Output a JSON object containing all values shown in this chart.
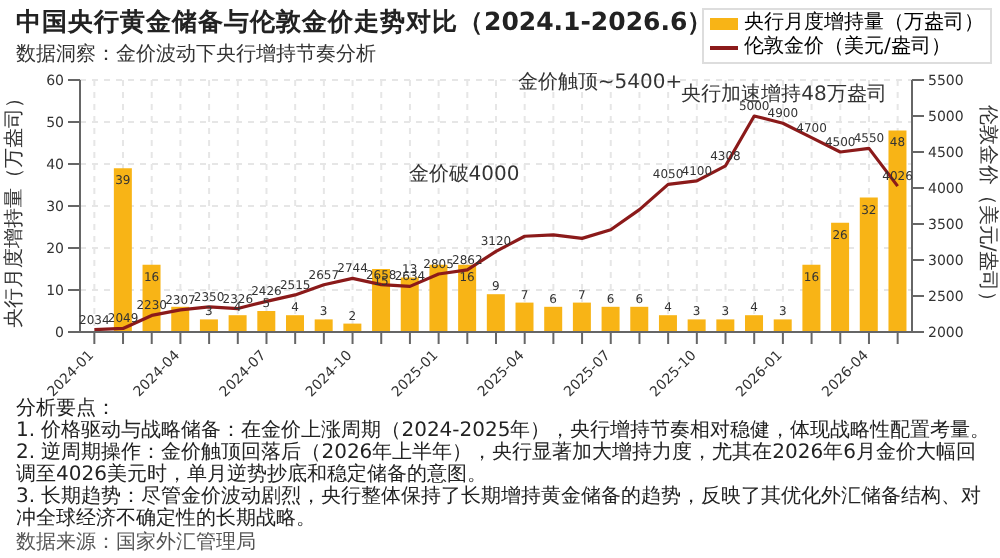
{
  "chart_data": {
    "type": "bar",
    "title": "中国央行黄金储备与伦敦金价走势对比（2024.1-2026.6）",
    "subtitle": "数据洞察：金价波动下央行增持节奏分析",
    "ylabel": "央行月度增持量（万盎司）",
    "y2label": "伦敦金价（美元/盎司）",
    "categories": [
      "2024-01",
      null,
      null,
      "2024-04",
      null,
      null,
      "2024-07",
      null,
      null,
      "2024-10",
      null,
      null,
      "2025-01",
      null,
      null,
      "2025-04",
      null,
      null,
      "2025-07",
      null,
      null,
      "2025-10",
      null,
      null,
      "2026-01",
      null,
      null,
      "2026-04",
      null
    ],
    "series": [
      {
        "name": "央行月度增持量（万盎司）",
        "color": "#f8b416",
        "values": [
          null,
          39,
          16,
          6,
          3,
          4,
          5,
          4,
          3,
          2,
          15,
          13,
          16,
          16,
          9,
          7,
          6,
          7,
          6,
          6,
          4,
          3,
          3,
          4,
          3,
          16,
          26,
          32,
          48
        ],
        "value_labels": [
          null,
          "39",
          "16",
          null,
          "3",
          "4",
          "5",
          "4",
          "3",
          "2",
          "15",
          "13",
          null,
          "16",
          "9",
          "7",
          "6",
          "7",
          "6",
          "6",
          "4",
          "3",
          "3",
          "4",
          "3",
          "16",
          "26",
          "32",
          "48"
        ]
      },
      {
        "name": "伦敦金价（美元/盎司）",
        "type": "line",
        "axis": "y2",
        "color": "#8b1a1a",
        "values": [
          2034,
          2049,
          2230,
          2307,
          2350,
          2326,
          2426,
          2515,
          2657,
          2744,
          2658,
          2634,
          2805,
          2862,
          3120,
          3330,
          3350,
          3300,
          3420,
          3700,
          4050,
          4100,
          4308,
          5000,
          4900,
          4700,
          4500,
          4550,
          4026
        ],
        "value_labels": [
          "2034",
          "2049",
          "2230",
          "2307",
          "2350",
          "2326",
          "2426",
          "2515",
          "2657",
          "2744",
          "2658",
          "2634",
          "2805",
          "2862",
          "3120",
          null,
          null,
          null,
          null,
          null,
          "4050",
          "4100",
          "4308",
          "5000",
          "4900",
          "4700",
          "4500",
          "4550",
          "4026"
        ]
      }
    ],
    "ylim": [
      0,
      60
    ],
    "yticks": [
      0,
      10,
      20,
      30,
      40,
      50,
      60
    ],
    "y2lim": [
      2000,
      5500
    ],
    "y2ticks": [
      2000,
      2500,
      3000,
      3500,
      4000,
      4500,
      5000,
      5500
    ],
    "grid": true,
    "legend": "top right",
    "marker": "none",
    "annotations": [
      "金价触顶~5400+",
      "金价破4000",
      "央行加速增持48万盎司",
      "分析要点：",
      "1. 价格驱动与战略储备：在金价上涨周期（2024-2025年），央行增持节奏相对稳健，体现战略性配置考量。",
      "2. 逆周期操作：金价触顶回落后（2026年上半年），央行显著加大增持力度，尤其在2026年6月金价大幅回调至4026美元时，单月逆势抄底和稳定储备的意图。",
      "3. 长期趋势：尽管金价波动剧烈，央行整体保持了长期增持黄金储备的趋势，反映了其优化外汇储备结构、对冲全球经济不确定性的长期战略。",
      "数据来源：国家外汇管理局"
    ]
  }
}
